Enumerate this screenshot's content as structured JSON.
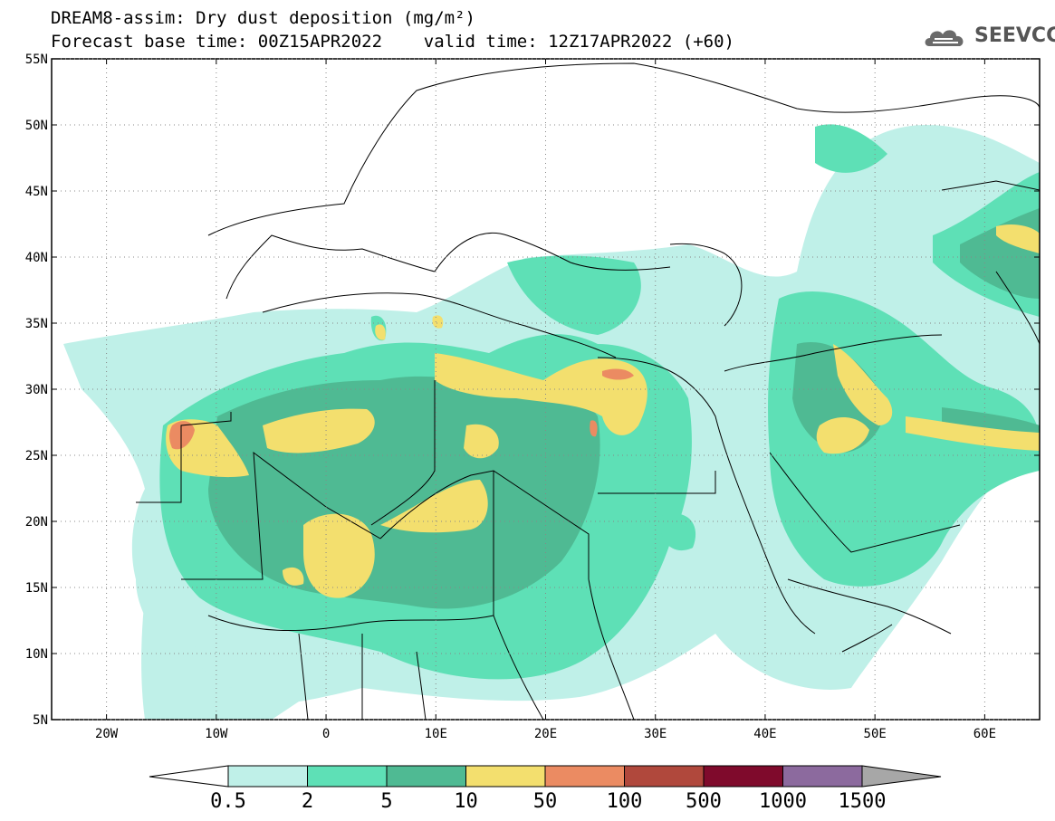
{
  "header": {
    "title_line1": "DREAM8-assim: Dry dust deposition (mg/m²)",
    "title_line2": "Forecast base time: 00Z15APR2022    valid time: 12Z17APR2022 (+60)",
    "logo_text": "SEEVCCC"
  },
  "map": {
    "lon_range": [
      -25,
      65
    ],
    "lat_range": [
      5,
      55
    ],
    "lat_labels": [
      "55N",
      "50N",
      "45N",
      "40N",
      "35N",
      "30N",
      "25N",
      "20N",
      "15N",
      "10N",
      "5N"
    ],
    "lon_labels": [
      "20W",
      "10W",
      "0",
      "10E",
      "20E",
      "30E",
      "40E",
      "50E",
      "60E"
    ],
    "lon_values": [
      -20,
      -10,
      0,
      10,
      20,
      30,
      40,
      50,
      60
    ],
    "lat_values": [
      55,
      50,
      45,
      40,
      35,
      30,
      25,
      20,
      15,
      10,
      5
    ],
    "grid": true
  },
  "legend": {
    "labels": [
      "0.5",
      "2",
      "5",
      "10",
      "50",
      "100",
      "500",
      "1000",
      "1500"
    ],
    "colors": [
      "#bff0e8",
      "#5ee0b6",
      "#4fba93",
      "#f3df6e",
      "#eb8b62",
      "#b0483c",
      "#7f0a2c",
      "#8c6a9e",
      "#a7a7a7"
    ]
  }
}
